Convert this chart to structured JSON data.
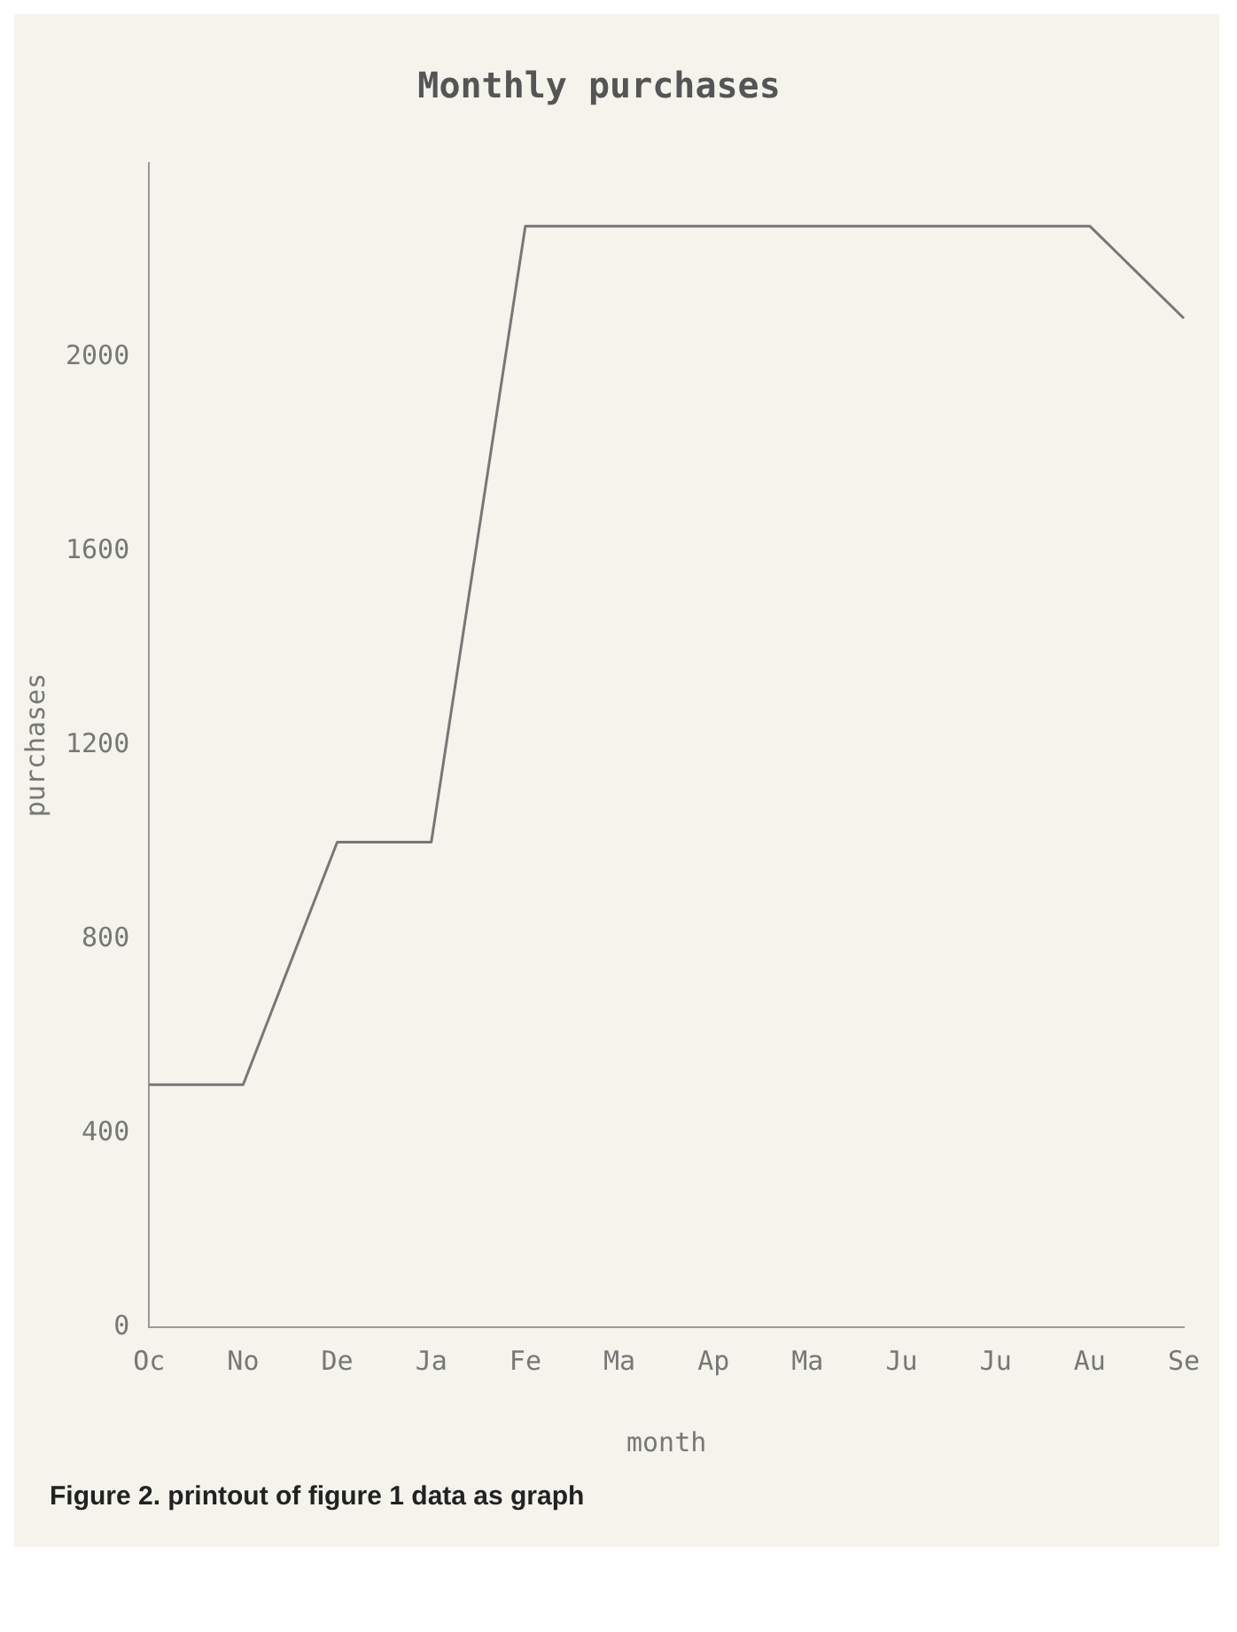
{
  "chart_data": {
    "type": "line",
    "title": "Monthly purchases",
    "xlabel": "month",
    "ylabel": "purchases",
    "categories": [
      "Oc",
      "No",
      "De",
      "Ja",
      "Fe",
      "Ma",
      "Ap",
      "Ma",
      "Ju",
      "Ju",
      "Au",
      "Se"
    ],
    "series": [
      {
        "color": "#777777",
        "values": [
          500,
          500,
          1000,
          1000,
          2270,
          2270,
          2270,
          2270,
          2270,
          2270,
          2270,
          2080
        ]
      }
    ],
    "ylim": [
      0,
      2400
    ],
    "yticks": [
      0,
      400,
      800,
      1200,
      1600,
      2000
    ],
    "grid": false,
    "legend": false,
    "marker": "none",
    "line_style": "solid",
    "annotations": [
      "Figure 2. printout of figure 1 data as graph"
    ]
  }
}
